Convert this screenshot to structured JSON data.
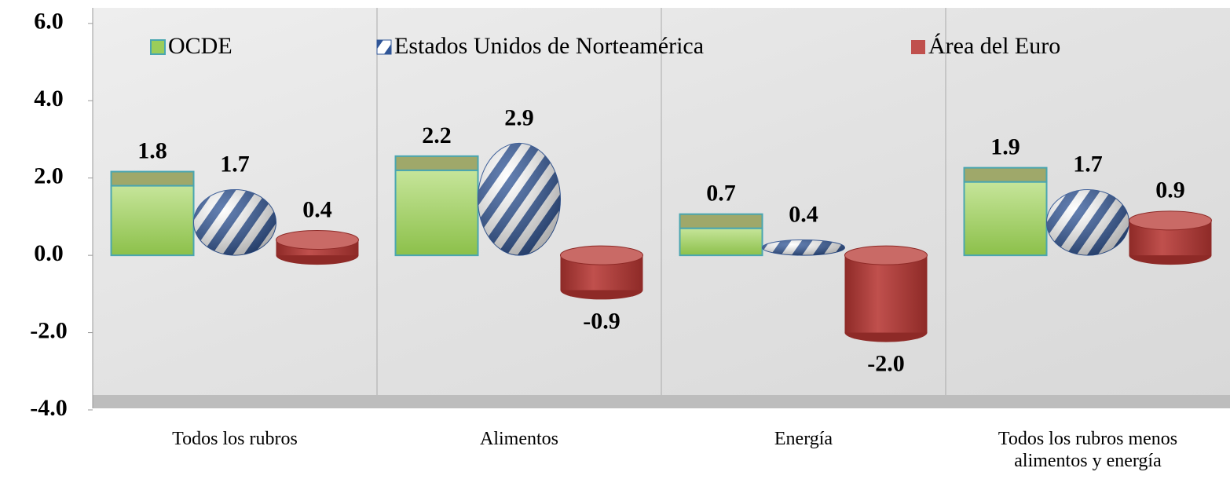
{
  "chart_data": {
    "type": "bar",
    "categories": [
      "Todos los rubros",
      "Alimentos",
      "Energía",
      "Todos los rubros menos alimentos y energía"
    ],
    "series": [
      {
        "name": "OCDE",
        "color": "#9acd5a",
        "values": [
          1.8,
          2.2,
          0.7,
          1.9
        ],
        "value_labels": [
          "1.8",
          "2.2",
          "0.7",
          "1.9"
        ]
      },
      {
        "name": "Estados Unidos de Norteamérica",
        "color": "#2f5597",
        "values": [
          1.7,
          2.9,
          0.4,
          1.7
        ],
        "value_labels": [
          "1.7",
          "2.9",
          "0.4",
          "1.7"
        ]
      },
      {
        "name": "Área del Euro",
        "color": "#c0504d",
        "values": [
          0.4,
          -0.9,
          -2.0,
          0.9
        ],
        "value_labels": [
          "0.4",
          "-0.9",
          "-2.0",
          "0.9"
        ]
      }
    ],
    "ylim": [
      -4,
      6.2
    ],
    "yticks": [
      {
        "value": -4,
        "label": "-4.0"
      },
      {
        "value": -2,
        "label": "-2.0"
      },
      {
        "value": 0,
        "label": "0.0"
      },
      {
        "value": 2,
        "label": "2.0"
      },
      {
        "value": 4,
        "label": "4.0"
      },
      {
        "value": 6,
        "label": "6.0"
      }
    ],
    "legend": "top"
  }
}
